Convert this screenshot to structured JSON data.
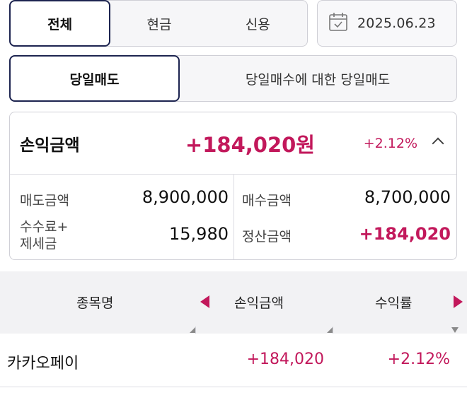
{
  "account_type_tabs": [
    {
      "label": "전체",
      "active": true
    },
    {
      "label": "현금",
      "active": false
    },
    {
      "label": "신용",
      "active": false
    }
  ],
  "date": {
    "value": "2025.06.23",
    "icon": "calendar-icon"
  },
  "trade_type_tabs": [
    {
      "label": "당일매도",
      "active": true
    },
    {
      "label": "당일매수에 대한 당일매도",
      "active": false
    }
  ],
  "summary": {
    "pl_label": "손익금액",
    "pl_amount": "+184,020원",
    "pl_rate": "+2.12%",
    "sell_amount_label": "매도금액",
    "sell_amount_value": "8,900,000",
    "buy_amount_label": "매수금액",
    "buy_amount_value": "8,700,000",
    "fee_tax_label_line1": "수수료+",
    "fee_tax_label_line2": "제세금",
    "fee_tax_value": "15,980",
    "settlement_label": "정산금액",
    "settlement_value": "+184,020"
  },
  "table": {
    "headers": [
      "종목명",
      "손익금액",
      "수익률"
    ],
    "rows": [
      {
        "name": "카카오페이",
        "pl": "+184,020",
        "rate": "+2.12%"
      }
    ]
  },
  "colors": {
    "accent": "#c2185b",
    "active_border": "#1d2450"
  }
}
